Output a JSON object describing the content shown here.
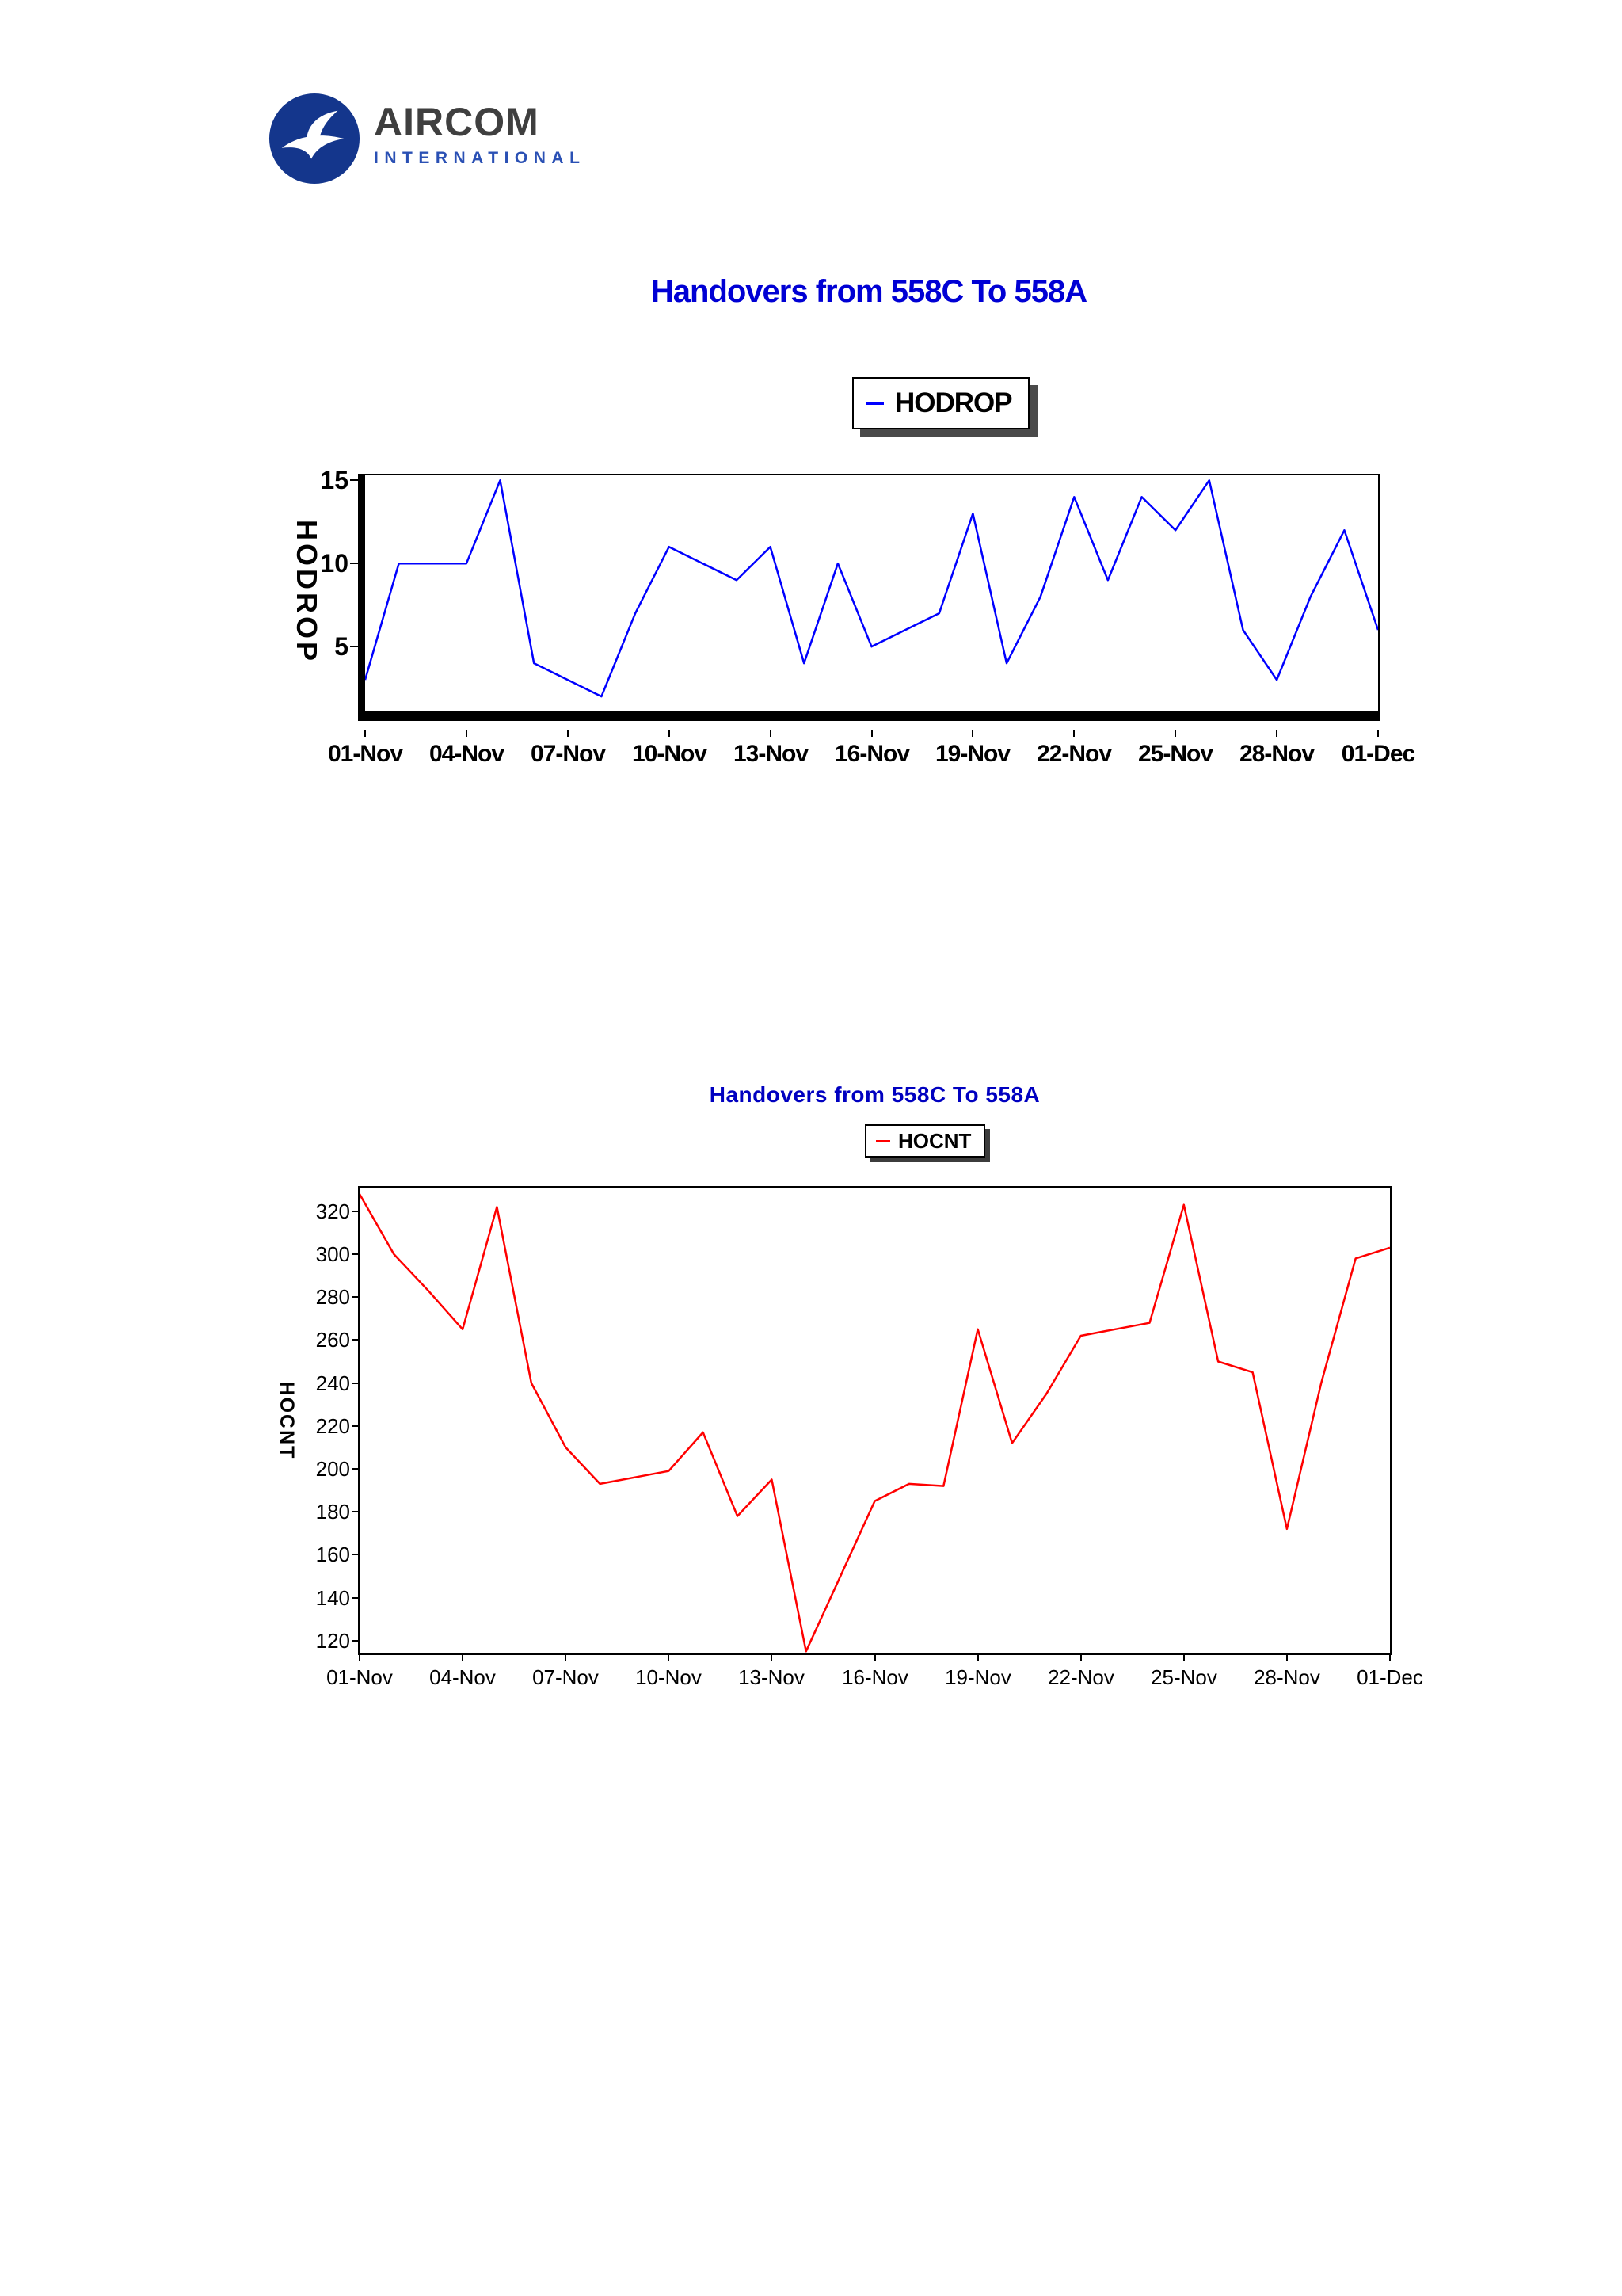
{
  "header": {
    "logo": {
      "brand": "AIRCOM",
      "subtitle": "INTERNATIONAL",
      "icon": "swan-bird-icon",
      "circle_color": "#14368c",
      "brand_color": "#3f3f3f",
      "subtitle_color": "#2a50b4"
    }
  },
  "chart_data": [
    {
      "type": "line",
      "title": "Handovers from 558C To 558A",
      "title_color": "#0000d4",
      "ylabel": "HODROP",
      "legend_position": "top-center",
      "grid": false,
      "series": [
        {
          "name": "HODROP",
          "color": "#0000ff",
          "values": [
            3,
            10,
            10,
            10,
            15,
            4,
            3,
            2,
            7,
            11,
            10,
            9,
            11,
            4,
            10,
            5,
            6,
            7,
            13,
            4,
            8,
            14,
            9,
            14,
            12,
            15,
            6,
            3,
            8,
            12,
            6
          ]
        }
      ],
      "x_tick_labels": [
        "01-Nov",
        "04-Nov",
        "07-Nov",
        "10-Nov",
        "13-Nov",
        "16-Nov",
        "19-Nov",
        "22-Nov",
        "25-Nov",
        "28-Nov",
        "01-Dec"
      ],
      "x_days_per_tick": 3,
      "y_ticks": [
        15,
        10,
        5
      ],
      "ylim": [
        1.1,
        15.3
      ]
    },
    {
      "type": "line",
      "title": "Handovers from 558C To 558A",
      "title_color": "#0000c0",
      "ylabel": "HOCNT",
      "legend_position": "top-center",
      "grid": false,
      "series": [
        {
          "name": "HOCNT",
          "color": "#ff0000",
          "values": [
            328,
            300,
            283,
            265,
            322,
            240,
            210,
            193,
            196,
            199,
            217,
            178,
            195,
            115,
            150,
            185,
            193,
            192,
            265,
            212,
            235,
            262,
            265,
            268,
            323,
            250,
            245,
            172,
            240,
            298,
            303
          ]
        }
      ],
      "x_tick_labels": [
        "01-Nov",
        "04-Nov",
        "07-Nov",
        "10-Nov",
        "13-Nov",
        "16-Nov",
        "19-Nov",
        "22-Nov",
        "25-Nov",
        "28-Nov",
        "01-Dec"
      ],
      "x_days_per_tick": 3,
      "y_ticks": [
        320,
        300,
        280,
        260,
        240,
        220,
        200,
        180,
        160,
        140,
        120
      ],
      "ylim": [
        114,
        331
      ]
    }
  ]
}
